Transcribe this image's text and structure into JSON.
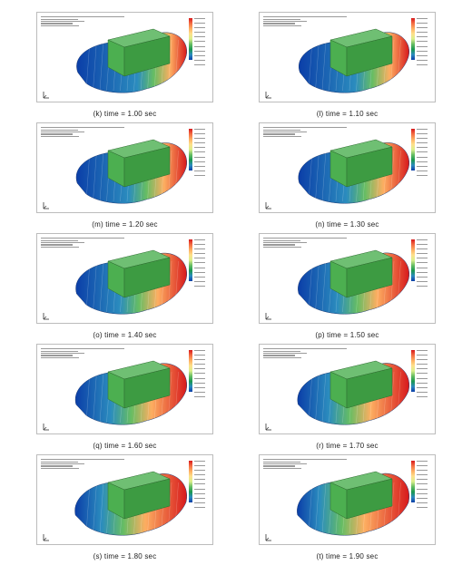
{
  "panels": [
    {
      "caption": "(k) time = 1.00 sec"
    },
    {
      "caption": "(l) time = 1.10 sec"
    },
    {
      "caption": "(m) time = 1.20 sec"
    },
    {
      "caption": "(n) time = 1.30 sec"
    },
    {
      "caption": "(o) time = 1.40 sec"
    },
    {
      "caption": "(p) time = 1.50 sec"
    },
    {
      "caption": "(q) time = 1.60 sec"
    },
    {
      "caption": "(r) time = 1.70 sec"
    },
    {
      "caption": "(s) time = 1.80 sec"
    },
    {
      "caption": "(t) time = 1.90 sec"
    }
  ],
  "colors": {
    "hot": "#d7191c",
    "warm": "#fdae61",
    "mid": "#66bd63",
    "cool": "#2b8cbe",
    "cold": "#0b3ea8",
    "box": "#4caf50"
  }
}
